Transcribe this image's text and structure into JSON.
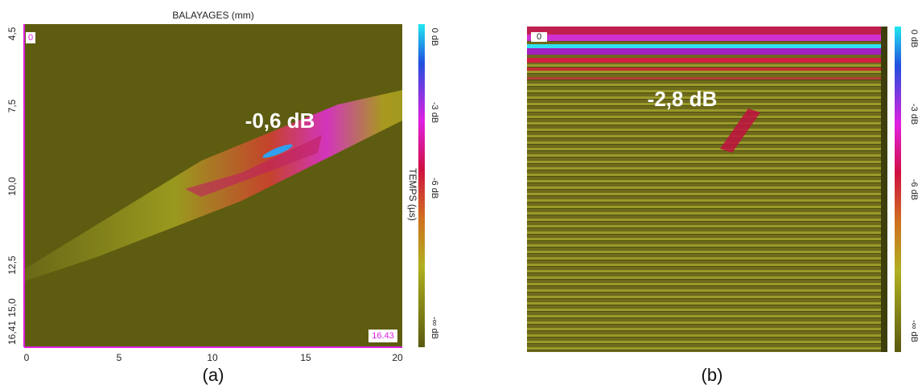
{
  "panel_a": {
    "title": "BALAYAGES (mm)",
    "y_tick_labels": [
      "4,5",
      "7,5",
      "10,0",
      "12,5",
      "15,0",
      "16,41"
    ],
    "x_tick_labels": [
      "0",
      "5",
      "10",
      "15",
      "20"
    ],
    "corner_top_left": "0",
    "corner_bottom_right": "16.43",
    "annotation": "-0,6 dB",
    "colorbar_labels": [
      "0 dB",
      "-3 dB",
      "-6 dB",
      "-∞ dB"
    ],
    "axis_label": "TEMPS (µs)",
    "caption": "(a)"
  },
  "panel_b": {
    "corner_top_left": "0",
    "annotation": "-2,8 dB",
    "colorbar_labels": [
      "0 dB",
      "-3 dB",
      "-6 dB",
      "-∞ dB"
    ],
    "caption": "(b)"
  }
}
